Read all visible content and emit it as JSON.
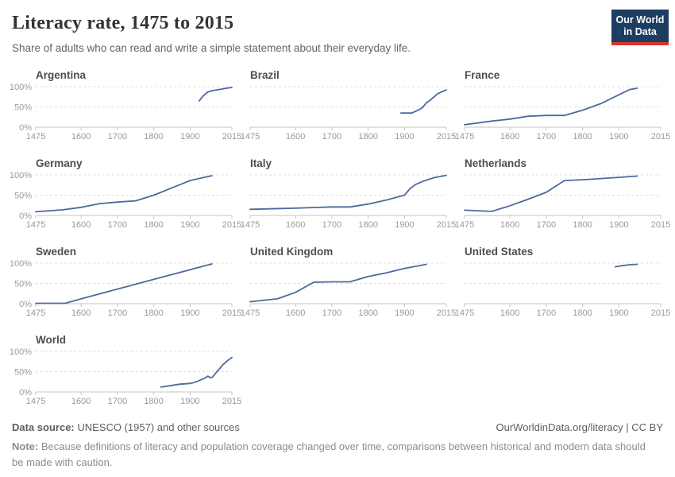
{
  "header": {
    "title": "Literacy rate, 1475 to 2015",
    "subtitle": "Share of adults who can read and write a simple statement about their everyday life.",
    "logo": {
      "line1": "Our World",
      "line2": "in Data"
    }
  },
  "colors": {
    "line": "#4c6a9c",
    "gridline": "#dcdcdc",
    "axis": "#c4c4c4",
    "logo_navy": "#1d3d63",
    "logo_red": "#dc352c"
  },
  "axis": {
    "x_range": [
      1475,
      2015
    ],
    "y_range": [
      0,
      100
    ],
    "x_ticks": [
      "1475",
      "1600",
      "1700",
      "1800",
      "1900",
      "2015"
    ],
    "y_ticks": [
      {
        "label": "100%",
        "value": 100
      },
      {
        "label": "50%",
        "value": 50
      },
      {
        "label": "0%",
        "value": 0
      }
    ],
    "grid": "dashed horizontal at 50% and 100%",
    "y_labels_first_column_only": true
  },
  "chart_data": [
    {
      "type": "line",
      "title": "Argentina",
      "points": [
        [
          1925,
          65
        ],
        [
          1935,
          76
        ],
        [
          1947,
          86
        ],
        [
          1960,
          90
        ],
        [
          1980,
          93
        ],
        [
          2000,
          96
        ],
        [
          2015,
          98
        ]
      ]
    },
    {
      "type": "line",
      "title": "Brazil",
      "points": [
        [
          1890,
          35
        ],
        [
          1920,
          35
        ],
        [
          1940,
          43
        ],
        [
          1950,
          49
        ],
        [
          1960,
          60
        ],
        [
          1970,
          66
        ],
        [
          1980,
          74
        ],
        [
          1990,
          82
        ],
        [
          2000,
          86
        ],
        [
          2015,
          92
        ]
      ]
    },
    {
      "type": "line",
      "title": "France",
      "points": [
        [
          1475,
          6
        ],
        [
          1550,
          15
        ],
        [
          1600,
          20
        ],
        [
          1650,
          27
        ],
        [
          1700,
          29
        ],
        [
          1750,
          29
        ],
        [
          1800,
          42
        ],
        [
          1850,
          58
        ],
        [
          1900,
          80
        ],
        [
          1930,
          93
        ],
        [
          1950,
          96
        ]
      ]
    },
    {
      "type": "line",
      "title": "Germany",
      "points": [
        [
          1475,
          9
        ],
        [
          1550,
          14
        ],
        [
          1600,
          20
        ],
        [
          1650,
          29
        ],
        [
          1700,
          33
        ],
        [
          1750,
          36
        ],
        [
          1800,
          50
        ],
        [
          1850,
          68
        ],
        [
          1900,
          86
        ],
        [
          1960,
          98
        ]
      ]
    },
    {
      "type": "line",
      "title": "Italy",
      "points": [
        [
          1475,
          15
        ],
        [
          1600,
          18
        ],
        [
          1700,
          21
        ],
        [
          1750,
          21
        ],
        [
          1800,
          28
        ],
        [
          1850,
          38
        ],
        [
          1900,
          50
        ],
        [
          1915,
          66
        ],
        [
          1930,
          76
        ],
        [
          1950,
          84
        ],
        [
          1980,
          93
        ],
        [
          2015,
          99
        ]
      ]
    },
    {
      "type": "line",
      "title": "Netherlands",
      "points": [
        [
          1475,
          13
        ],
        [
          1550,
          10
        ],
        [
          1600,
          24
        ],
        [
          1650,
          40
        ],
        [
          1700,
          57
        ],
        [
          1750,
          86
        ],
        [
          1800,
          88
        ],
        [
          1850,
          91
        ],
        [
          1900,
          94
        ],
        [
          1950,
          97
        ]
      ]
    },
    {
      "type": "line",
      "title": "Sweden",
      "points": [
        [
          1475,
          1
        ],
        [
          1556,
          1
        ],
        [
          1600,
          12
        ],
        [
          1700,
          36
        ],
        [
          1800,
          60
        ],
        [
          1900,
          84
        ],
        [
          1960,
          98
        ]
      ]
    },
    {
      "type": "line",
      "title": "United Kingdom",
      "points": [
        [
          1475,
          5
        ],
        [
          1550,
          12
        ],
        [
          1600,
          28
        ],
        [
          1650,
          53
        ],
        [
          1700,
          54
        ],
        [
          1750,
          54
        ],
        [
          1800,
          67
        ],
        [
          1850,
          76
        ],
        [
          1900,
          87
        ],
        [
          1960,
          97
        ]
      ]
    },
    {
      "type": "line",
      "title": "United States",
      "points": [
        [
          1890,
          91
        ],
        [
          1910,
          94
        ],
        [
          1930,
          96
        ],
        [
          1950,
          97
        ]
      ]
    },
    {
      "type": "line",
      "title": "World",
      "points": [
        [
          1820,
          12
        ],
        [
          1850,
          16
        ],
        [
          1870,
          19
        ],
        [
          1900,
          21
        ],
        [
          1910,
          23
        ],
        [
          1920,
          26
        ],
        [
          1930,
          30
        ],
        [
          1940,
          34
        ],
        [
          1949,
          39
        ],
        [
          1956,
          35
        ],
        [
          1962,
          37
        ],
        [
          1970,
          46
        ],
        [
          1980,
          56
        ],
        [
          1990,
          67
        ],
        [
          2000,
          75
        ],
        [
          2010,
          82
        ],
        [
          2015,
          85
        ]
      ]
    }
  ],
  "footer": {
    "data_source_label": "Data source:",
    "data_source_value": " UNESCO (1957) and other sources",
    "link": "OurWorldinData.org/literacy | CC BY",
    "note_label": "Note:",
    "note_text": " Because definitions of literacy and population coverage changed over time, comparisons between historical and modern data should be made with caution."
  }
}
